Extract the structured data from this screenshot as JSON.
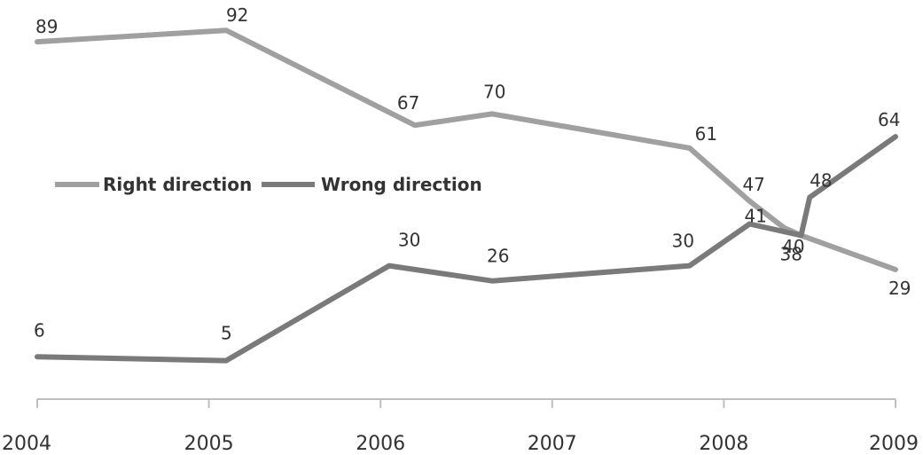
{
  "chart_data": {
    "type": "line",
    "title": "",
    "xlabel": "",
    "ylabel": "",
    "x_ticks": [
      "2004",
      "2005",
      "2006",
      "2007",
      "2008",
      "2009"
    ],
    "xlim": [
      2004,
      2009
    ],
    "ylim": [
      0,
      100
    ],
    "grid": false,
    "legend_position": "middle-left",
    "series": [
      {
        "name": "Right direction",
        "color": "#a0a0a0",
        "points": [
          {
            "x": 2004.0,
            "y": 89,
            "label": "89"
          },
          {
            "x": 2005.1,
            "y": 92,
            "label": "92"
          },
          {
            "x": 2006.2,
            "y": 67,
            "label": "67"
          },
          {
            "x": 2006.65,
            "y": 70,
            "label": "70"
          },
          {
            "x": 2007.8,
            "y": 61,
            "label": "61"
          },
          {
            "x": 2008.15,
            "y": 47,
            "label": "47"
          },
          {
            "x": 2008.35,
            "y": 40,
            "label": "40"
          },
          {
            "x": 2008.45,
            "y": 38,
            "label": "38"
          },
          {
            "x": 2009.0,
            "y": 29,
            "label": "29"
          }
        ]
      },
      {
        "name": "Wrong direction",
        "color": "#7a7a7a",
        "points": [
          {
            "x": 2004.0,
            "y": 6,
            "label": "6"
          },
          {
            "x": 2005.1,
            "y": 5,
            "label": "5"
          },
          {
            "x": 2006.05,
            "y": 30,
            "label": "30"
          },
          {
            "x": 2006.65,
            "y": 26,
            "label": "26"
          },
          {
            "x": 2007.8,
            "y": 30,
            "label": "30"
          },
          {
            "x": 2008.15,
            "y": 41,
            "label": "41"
          },
          {
            "x": 2008.45,
            "y": 38,
            "label": ""
          },
          {
            "x": 2008.5,
            "y": 48,
            "label": "48"
          },
          {
            "x": 2009.0,
            "y": 64,
            "label": "64"
          }
        ]
      }
    ]
  }
}
